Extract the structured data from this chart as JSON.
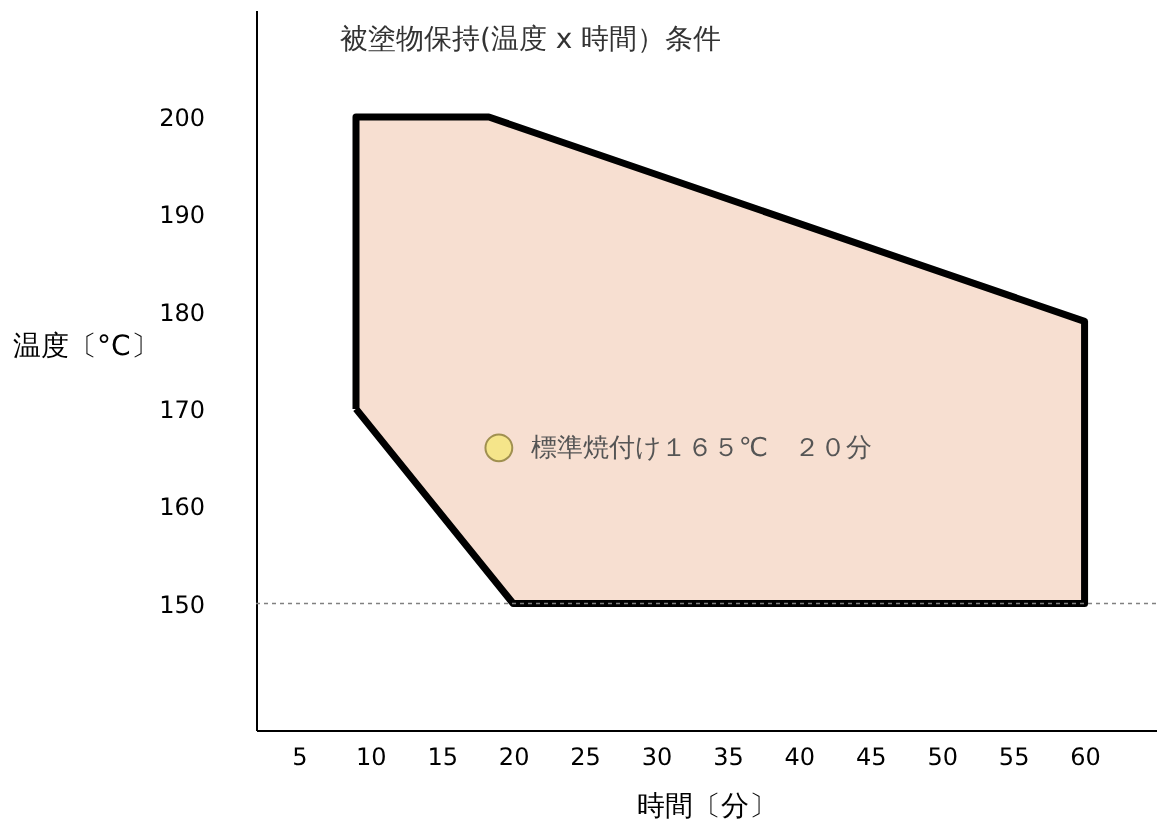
{
  "chart_data": {
    "type": "area",
    "title": "被塗物保持(温度 x 時間）条件",
    "xlabel": "時間〔分〕",
    "ylabel": "温度〔°C〕",
    "xlim": [
      2,
      65
    ],
    "xticks": [
      5,
      10,
      15,
      20,
      25,
      30,
      35,
      40,
      45,
      50,
      55,
      60
    ],
    "ylim": [
      137,
      211
    ],
    "yticks": [
      150,
      160,
      170,
      180,
      190,
      200
    ],
    "grid": false,
    "series": [
      {
        "color": "#e8a47c",
        "x": [
          9,
          9,
          18.3,
          60,
          60,
          20,
          9
        ],
        "values": [
          170,
          200,
          200,
          179,
          150,
          150,
          170
        ]
      },
      {
        "type": "scatter",
        "color": "#f5e58a",
        "x": [
          19
        ],
        "values": [
          166
        ]
      }
    ],
    "annotations": [
      {
        "text": "標準焼付け１６５℃　２０分",
        "x": 19,
        "y": 166
      }
    ],
    "ref_lines": [
      {
        "axis": "y",
        "value": 150,
        "color": "#808080",
        "line_style": "dotted"
      }
    ]
  }
}
